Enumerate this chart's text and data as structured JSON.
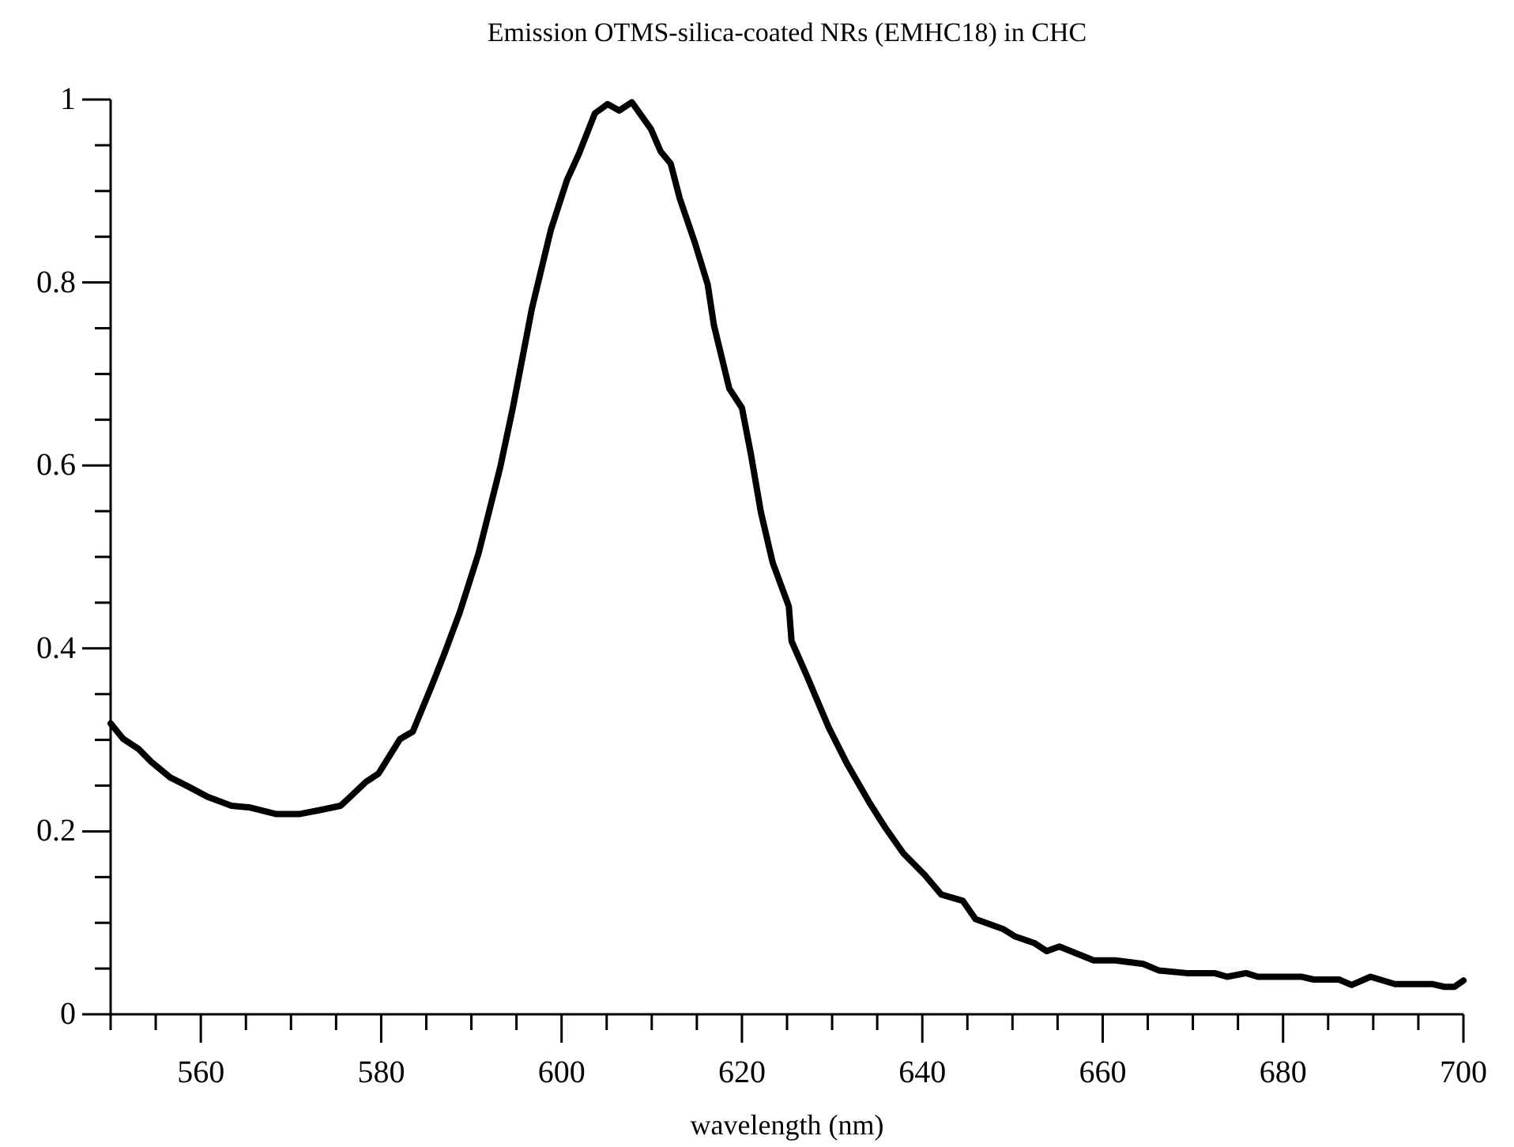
{
  "chart_data": {
    "type": "line",
    "title": "Emission OTMS-silica-coated NRs (EMHC18) in CHC",
    "xlabel": "wavelength (nm)",
    "xlim": [
      550,
      700
    ],
    "xticks": [
      {
        "value": 550,
        "label": null
      },
      {
        "value": 555,
        "label": null
      },
      560,
      {
        "value": 565,
        "label": null
      },
      {
        "value": 570,
        "label": null
      },
      {
        "value": 575,
        "label": null
      },
      580,
      {
        "value": 585,
        "label": null
      },
      {
        "value": 590,
        "label": null
      },
      {
        "value": 595,
        "label": null
      },
      600,
      {
        "value": 605,
        "label": null
      },
      {
        "value": 610,
        "label": null
      },
      {
        "value": 615,
        "label": null
      },
      620,
      {
        "value": 625,
        "label": null
      },
      {
        "value": 630,
        "label": null
      },
      {
        "value": 635,
        "label": null
      },
      640,
      {
        "value": 645,
        "label": null
      },
      {
        "value": 650,
        "label": null
      },
      {
        "value": 655,
        "label": null
      },
      660,
      {
        "value": 665,
        "label": null
      },
      {
        "value": 670,
        "label": null
      },
      {
        "value": 675,
        "label": null
      },
      680,
      {
        "value": 685,
        "label": null
      },
      {
        "value": 690,
        "label": null
      },
      {
        "value": 695,
        "label": null
      },
      700
    ],
    "ylim": [
      0,
      1
    ],
    "yticks": [
      0,
      {
        "value": 0.05,
        "label": null
      },
      {
        "value": 0.1,
        "label": null
      },
      {
        "value": 0.15,
        "label": null
      },
      0.2,
      {
        "value": 0.25,
        "label": null
      },
      {
        "value": 0.3,
        "label": null
      },
      {
        "value": 0.35,
        "label": null
      },
      0.4,
      {
        "value": 0.45,
        "label": null
      },
      {
        "value": 0.5,
        "label": null
      },
      {
        "value": 0.55,
        "label": null
      },
      0.6,
      {
        "value": 0.65,
        "label": null
      },
      {
        "value": 0.7,
        "label": null
      },
      {
        "value": 0.75,
        "label": null
      },
      0.8,
      {
        "value": 0.85,
        "label": null
      },
      {
        "value": 0.9,
        "label": null
      },
      {
        "value": 0.95,
        "label": null
      },
      1
    ],
    "grid": false,
    "series": [
      {
        "color": "#000000",
        "x": [
          550,
          551.4,
          553.1,
          554.5,
          556.6,
          558.6,
          560.7,
          563.4,
          565.5,
          568.3,
          571,
          573.1,
          575.5,
          576.6,
          578.3,
          579.7,
          582.1,
          583.5,
          585.6,
          587,
          588.7,
          590.8,
          593.2,
          594.6,
          596.7,
          598.8,
          600.6,
          601.9,
          603.7,
          605.1,
          606.4,
          607.8,
          609.9,
          611,
          612.1,
          613.1,
          614.8,
          616.2,
          616.9,
          618.6,
          620,
          621,
          622.1,
          623.4,
          625.2,
          625.5,
          627.2,
          629.6,
          631.7,
          634.1,
          635.9,
          637.9,
          640.3,
          642.1,
          644.5,
          645.9,
          649,
          650.3,
          652.4,
          653.8,
          655.2,
          659,
          661.4,
          664.5,
          666.2,
          669.3,
          672.4,
          673.8,
          675.9,
          677.2,
          682.1,
          683.4,
          686.2,
          687.6,
          689.7,
          692.4,
          696.6,
          697.9,
          699,
          700
        ],
        "values": [
          0.318,
          0.301,
          0.29,
          0.276,
          0.259,
          0.249,
          0.238,
          0.228,
          0.226,
          0.219,
          0.219,
          0.223,
          0.228,
          0.238,
          0.254,
          0.263,
          0.301,
          0.309,
          0.359,
          0.394,
          0.439,
          0.504,
          0.598,
          0.663,
          0.771,
          0.857,
          0.912,
          0.94,
          0.985,
          0.995,
          0.988,
          0.997,
          0.968,
          0.943,
          0.93,
          0.892,
          0.843,
          0.798,
          0.753,
          0.684,
          0.663,
          0.612,
          0.549,
          0.494,
          0.446,
          0.408,
          0.37,
          0.314,
          0.273,
          0.232,
          0.204,
          0.176,
          0.152,
          0.131,
          0.124,
          0.104,
          0.093,
          0.085,
          0.078,
          0.069,
          0.074,
          0.059,
          0.059,
          0.055,
          0.048,
          0.045,
          0.045,
          0.041,
          0.045,
          0.041,
          0.041,
          0.038,
          0.038,
          0.032,
          0.041,
          0.033,
          0.033,
          0.03,
          0.03,
          0.037
        ]
      }
    ]
  }
}
